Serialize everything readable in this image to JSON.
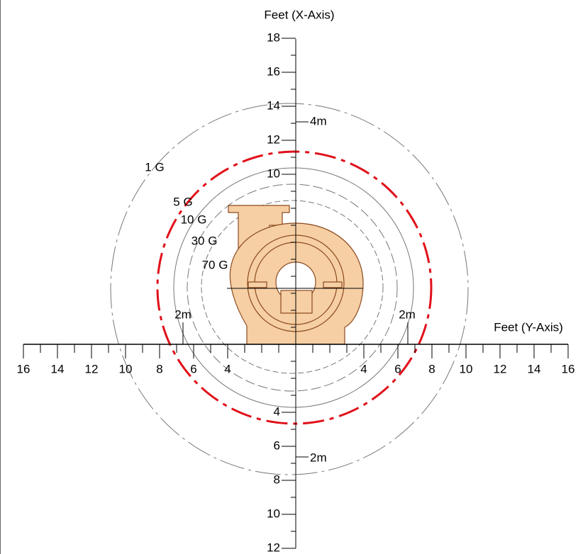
{
  "axes": {
    "vertical": {
      "title": "Feet (X-Axis)",
      "ticks_up": [
        10,
        12,
        14,
        16,
        18
      ],
      "ticks_down": [
        4,
        6,
        8,
        10,
        12
      ]
    },
    "horizontal": {
      "title": "Feet (Y-Axis)",
      "ticks_left": [
        16,
        14,
        12,
        10,
        8,
        6,
        4
      ],
      "ticks_right": [
        4,
        6,
        8,
        10,
        12,
        14,
        16
      ]
    }
  },
  "contours": [
    {
      "label": "1 G"
    },
    {
      "label": "5 G"
    },
    {
      "label": "10 G"
    },
    {
      "label": "30 G"
    },
    {
      "label": "70 G"
    }
  ],
  "metric_labels": {
    "left": "2m",
    "right": "2m",
    "up": "4m",
    "down": "2m"
  }
}
